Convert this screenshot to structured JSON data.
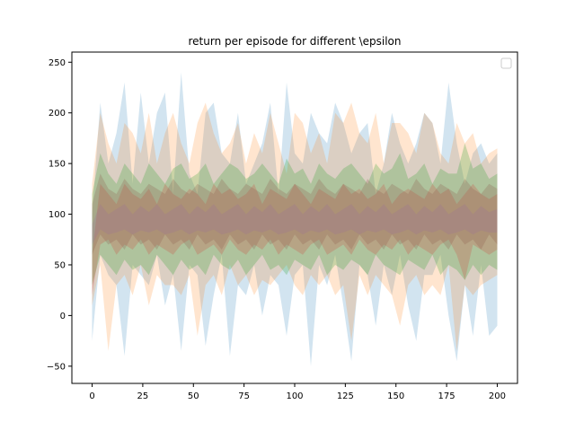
{
  "chart_data": {
    "type": "area",
    "title": "return per episode for different \\epsilon",
    "xlabel": "",
    "ylabel": "",
    "xlim": [
      -10,
      210
    ],
    "ylim": [
      -67,
      260
    ],
    "x_ticks": [
      0,
      25,
      50,
      75,
      100,
      125,
      150,
      175,
      200
    ],
    "y_ticks": [
      -50,
      0,
      50,
      100,
      150,
      200,
      250
    ],
    "grid": false,
    "legend": "top-right",
    "legend_entries": [],
    "x_start": 0,
    "x_step": 4,
    "series": [
      {
        "color": "#1f77b4",
        "opacity": 0.2,
        "upper": [
          100,
          210,
          150,
          180,
          230,
          130,
          220,
          150,
          200,
          220,
          120,
          240,
          140,
          120,
          200,
          210,
          160,
          150,
          200,
          130,
          150,
          170,
          210,
          120,
          230,
          160,
          150,
          200,
          180,
          170,
          210,
          190,
          160,
          180,
          190,
          120,
          150,
          200,
          170,
          150,
          170,
          200,
          190,
          150,
          230,
          170,
          130,
          160,
          170,
          150,
          160
        ],
        "lower": [
          -25,
          60,
          40,
          30,
          -40,
          50,
          40,
          30,
          60,
          10,
          40,
          -35,
          50,
          40,
          -30,
          20,
          60,
          -40,
          30,
          20,
          50,
          0,
          40,
          30,
          -20,
          40,
          50,
          -50,
          50,
          30,
          60,
          10,
          -45,
          50,
          40,
          -10,
          50,
          20,
          60,
          10,
          -25,
          40,
          40,
          60,
          0,
          -45,
          30,
          -20,
          50,
          -20,
          -10
        ]
      },
      {
        "color": "#ff7f0e",
        "opacity": 0.2,
        "upper": [
          130,
          200,
          170,
          150,
          190,
          180,
          160,
          200,
          150,
          180,
          200,
          170,
          150,
          190,
          210,
          180,
          160,
          170,
          190,
          150,
          180,
          160,
          200,
          170,
          140,
          200,
          190,
          160,
          180,
          150,
          200,
          190,
          210,
          180,
          170,
          200,
          150,
          190,
          190,
          180,
          160,
          200,
          190,
          160,
          150,
          190,
          170,
          180,
          150,
          160,
          165
        ],
        "lower": [
          10,
          50,
          -35,
          30,
          40,
          20,
          50,
          10,
          40,
          30,
          30,
          20,
          40,
          -20,
          30,
          40,
          20,
          50,
          30,
          40,
          20,
          35,
          30,
          40,
          50,
          30,
          20,
          40,
          30,
          40,
          20,
          30,
          -25,
          40,
          20,
          40,
          30,
          20,
          -10,
          30,
          40,
          20,
          30,
          20,
          50,
          -35,
          30,
          20,
          30,
          35,
          40
        ]
      },
      {
        "color": "#2ca02c",
        "opacity": 0.25,
        "upper": [
          120,
          160,
          140,
          130,
          150,
          140,
          130,
          150,
          140,
          130,
          145,
          150,
          135,
          140,
          150,
          130,
          140,
          150,
          145,
          135,
          140,
          150,
          140,
          130,
          155,
          140,
          145,
          130,
          150,
          140,
          135,
          145,
          150,
          140,
          130,
          150,
          140,
          145,
          160,
          135,
          140,
          150,
          130,
          145,
          140,
          140,
          170,
          145,
          150,
          135,
          140
        ],
        "lower": [
          30,
          60,
          50,
          40,
          55,
          45,
          50,
          40,
          60,
          50,
          40,
          55,
          45,
          50,
          40,
          60,
          50,
          45,
          55,
          40,
          50,
          60,
          45,
          50,
          40,
          55,
          50,
          45,
          60,
          40,
          50,
          45,
          55,
          50,
          40,
          60,
          50,
          45,
          40,
          55,
          50,
          45,
          60,
          40,
          50,
          45,
          35,
          50,
          40,
          50,
          45
        ]
      },
      {
        "color": "#d62728",
        "opacity": 0.2,
        "upper": [
          60,
          130,
          120,
          110,
          130,
          120,
          115,
          125,
          110,
          130,
          120,
          115,
          125,
          120,
          110,
          130,
          120,
          125,
          115,
          120,
          130,
          110,
          125,
          120,
          115,
          130,
          120,
          110,
          125,
          120,
          115,
          130,
          120,
          125,
          115,
          120,
          130,
          110,
          120,
          125,
          120,
          115,
          130,
          120,
          125,
          110,
          120,
          130,
          120,
          115,
          120
        ],
        "lower": [
          20,
          70,
          75,
          60,
          70,
          65,
          75,
          60,
          70,
          65,
          60,
          70,
          75,
          60,
          65,
          70,
          60,
          75,
          65,
          60,
          70,
          65,
          75,
          60,
          70,
          65,
          60,
          70,
          75,
          60,
          65,
          70,
          60,
          75,
          65,
          60,
          70,
          65,
          75,
          60,
          70,
          65,
          60,
          70,
          75,
          60,
          35,
          70,
          65,
          60,
          65
        ]
      },
      {
        "color": "#9467bd",
        "opacity": 0.2,
        "upper": [
          90,
          110,
          100,
          105,
          110,
          100,
          108,
          102,
          110,
          100,
          105,
          110,
          100,
          108,
          102,
          110,
          100,
          105,
          110,
          100,
          108,
          102,
          110,
          100,
          105,
          110,
          100,
          108,
          102,
          110,
          100,
          105,
          110,
          100,
          108,
          102,
          110,
          100,
          105,
          110,
          100,
          108,
          102,
          110,
          100,
          105,
          110,
          100,
          108,
          102,
          105
        ],
        "lower": [
          70,
          85,
          80,
          82,
          85,
          80,
          84,
          82,
          85,
          80,
          82,
          85,
          80,
          84,
          82,
          85,
          80,
          82,
          85,
          80,
          84,
          82,
          85,
          80,
          82,
          85,
          80,
          84,
          82,
          85,
          80,
          82,
          85,
          80,
          84,
          82,
          85,
          80,
          82,
          85,
          80,
          84,
          82,
          85,
          80,
          82,
          85,
          80,
          84,
          82,
          82
        ]
      },
      {
        "color": "#8c564b",
        "opacity": 0.25,
        "upper": [
          110,
          140,
          125,
          120,
          135,
          125,
          120,
          130,
          125,
          120,
          135,
          125,
          120,
          130,
          125,
          120,
          135,
          125,
          120,
          130,
          125,
          120,
          135,
          125,
          120,
          130,
          125,
          120,
          135,
          125,
          120,
          130,
          125,
          120,
          135,
          125,
          120,
          130,
          125,
          120,
          135,
          125,
          120,
          130,
          125,
          120,
          135,
          125,
          120,
          130,
          125
        ],
        "lower": [
          60,
          80,
          70,
          75,
          65,
          80,
          70,
          75,
          65,
          80,
          70,
          75,
          65,
          80,
          70,
          75,
          65,
          80,
          70,
          75,
          65,
          80,
          70,
          75,
          65,
          80,
          70,
          75,
          65,
          80,
          70,
          75,
          65,
          80,
          70,
          75,
          65,
          80,
          70,
          75,
          65,
          80,
          70,
          75,
          65,
          80,
          70,
          75,
          65,
          80,
          70
        ]
      }
    ]
  }
}
